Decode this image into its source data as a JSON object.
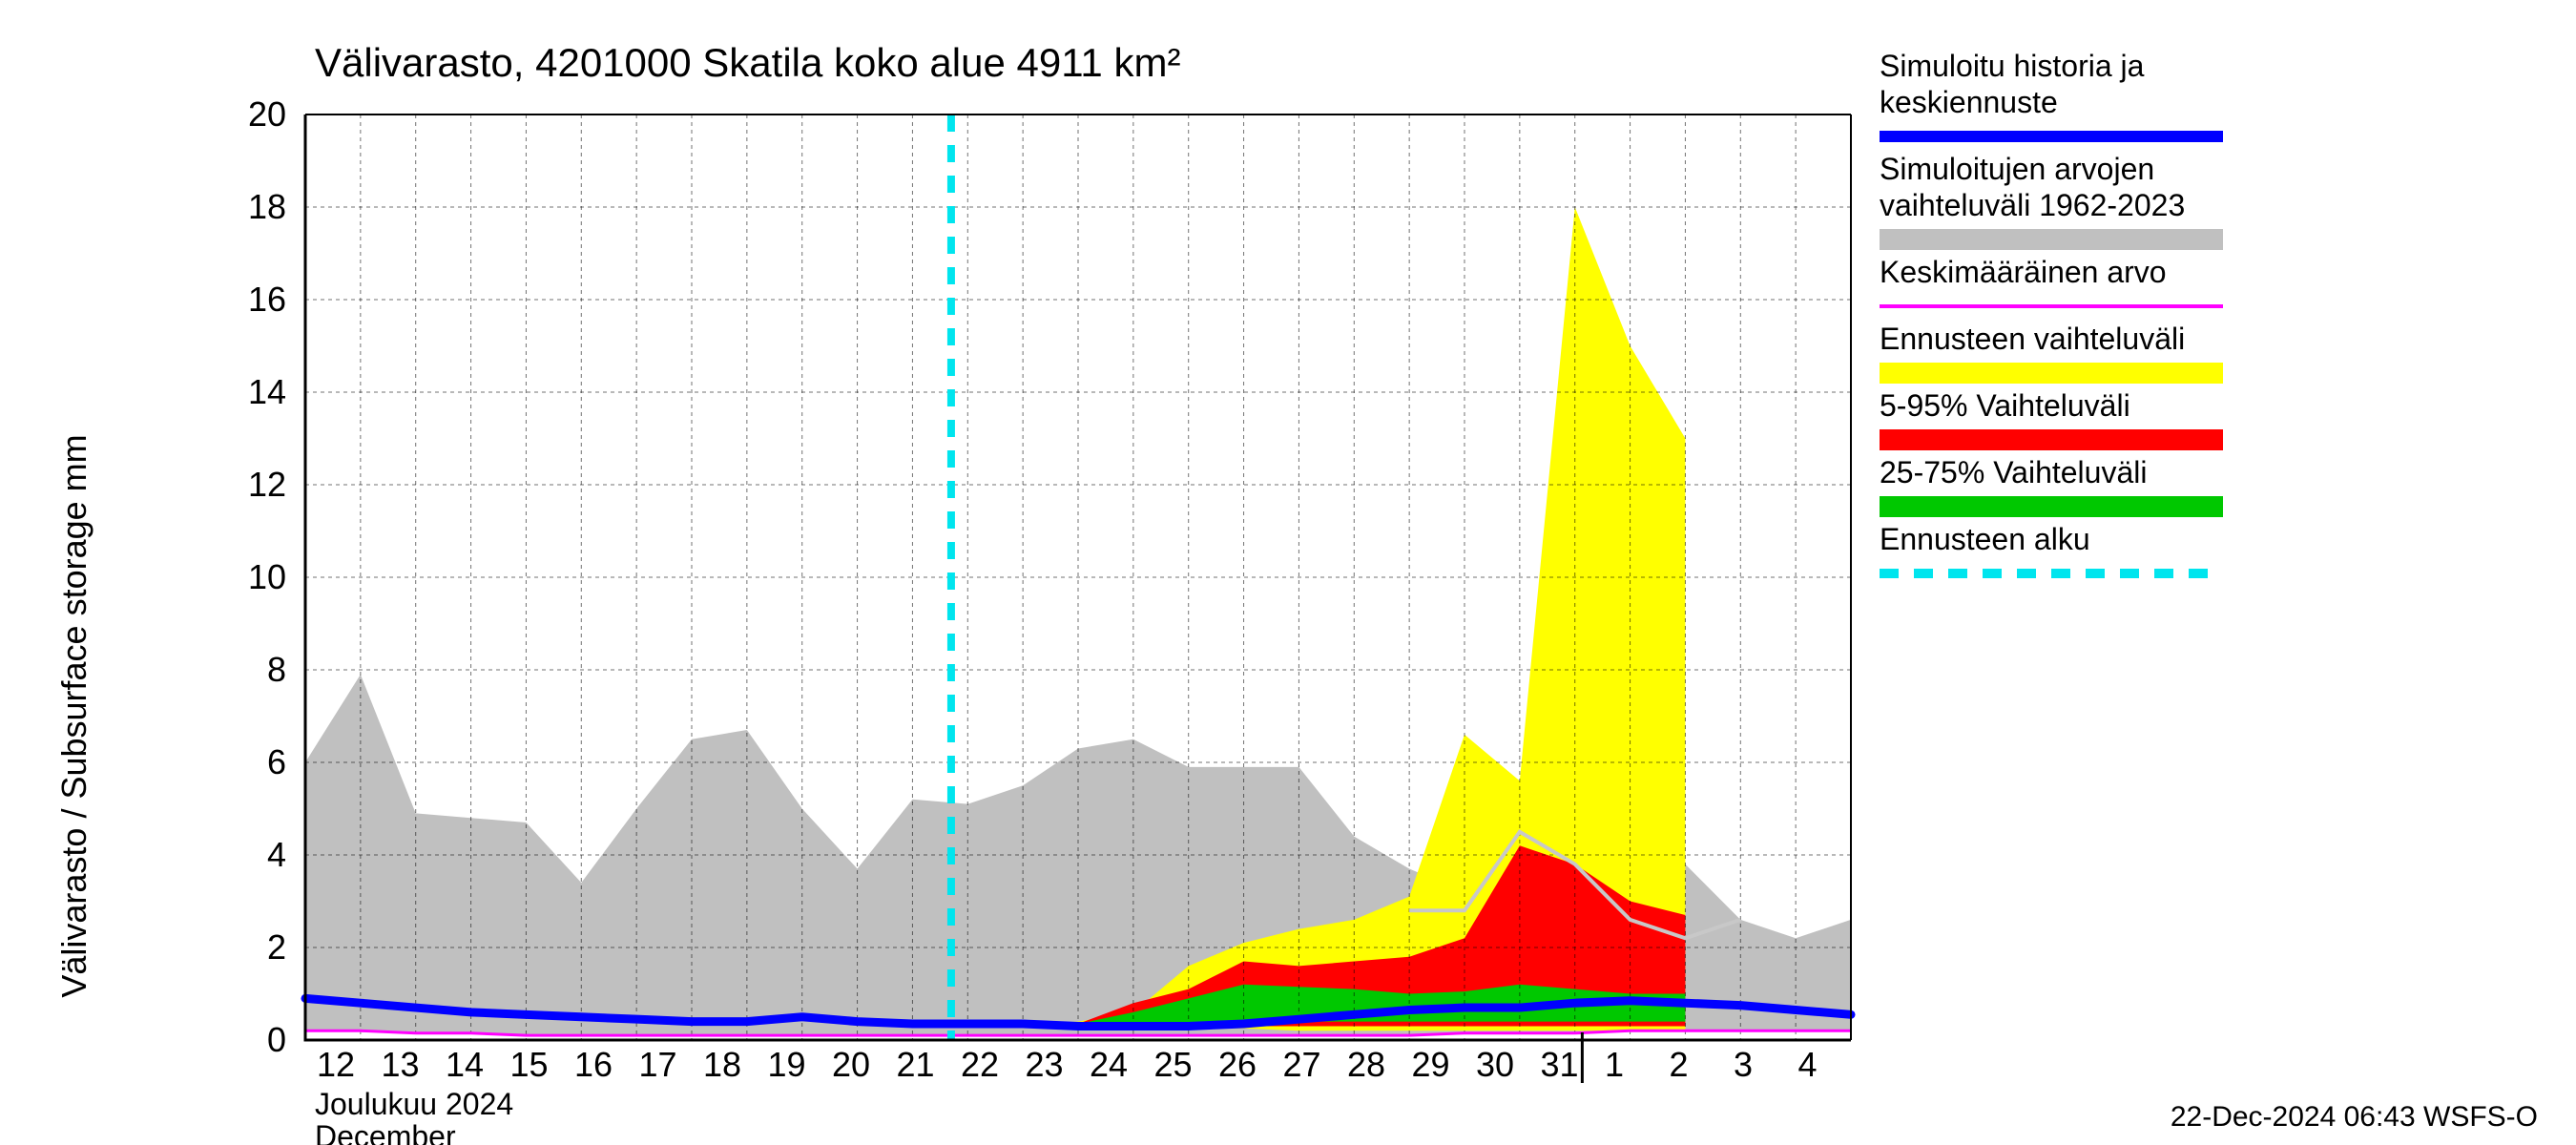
{
  "chart": {
    "type": "area-line",
    "title": "Välivarasto, 4201000 Skatila koko alue 4911 km²",
    "ylabel": "Välivarasto / Subsurface storage  mm",
    "xlabel_month_fi": "Joulukuu  2024",
    "xlabel_month_en": "December",
    "footer": "22-Dec-2024 06:43 WSFS-O",
    "background_color": "#ffffff",
    "grid_color": "#000000",
    "y": {
      "min": 0,
      "max": 20,
      "ticks": [
        0,
        2,
        4,
        6,
        8,
        10,
        12,
        14,
        16,
        18,
        20
      ],
      "label_fontsize": 36
    },
    "x": {
      "days": [
        12,
        13,
        14,
        15,
        16,
        17,
        18,
        19,
        20,
        21,
        22,
        23,
        24,
        25,
        26,
        27,
        28,
        29,
        30,
        31,
        1,
        2,
        3,
        4
      ],
      "month_break_index": 20,
      "label_fontsize": 30
    },
    "forecast_start_index": 10,
    "colors": {
      "blue_main": "#0000ff",
      "grey_band": "#c0c0c0",
      "magenta_mean": "#ff00ff",
      "yellow_band": "#ffff00",
      "red_band": "#ff0000",
      "green_band": "#00c800",
      "cyan_dash": "#00e5ee",
      "lightgrey_line": "#c8c8c8"
    },
    "line_widths": {
      "blue_main": 9,
      "magenta_mean": 3,
      "cyan_dash": 8,
      "lightgrey_line": 4
    },
    "series": {
      "grey_upper": [
        6.0,
        7.9,
        4.9,
        4.8,
        4.7,
        3.4,
        5.0,
        6.5,
        6.7,
        5.0,
        3.7,
        5.2,
        5.1,
        5.5,
        6.3,
        6.5,
        5.9,
        5.9,
        5.9,
        4.4,
        3.7,
        3.2,
        3.0,
        2.8,
        4.5,
        3.8,
        2.6,
        2.2,
        2.6
      ],
      "grey_lower": [
        0.2,
        0.2,
        0.15,
        0.15,
        0.1,
        0.1,
        0.1,
        0.1,
        0.1,
        0.1,
        0.1,
        0.1,
        0.1,
        0.1,
        0.1,
        0.1,
        0.1,
        0.1,
        0.1,
        0.1,
        0.1,
        0.15,
        0.15,
        0.15,
        0.2,
        0.2,
        0.2,
        0.2,
        0.2
      ],
      "yellow_upper": [
        0.35,
        0.35,
        0.35,
        0.3,
        0.3,
        0.3,
        0.3,
        0.3,
        0.3,
        0.3,
        0.3,
        0.3,
        0.3,
        0.35,
        0.4,
        0.6,
        1.6,
        2.1,
        2.4,
        2.6,
        3.1,
        6.6,
        5.6,
        18.0,
        15.0,
        13.0
      ],
      "yellow_lower": [
        0.35,
        0.35,
        0.35,
        0.3,
        0.3,
        0.3,
        0.3,
        0.3,
        0.3,
        0.3,
        0.3,
        0.3,
        0.3,
        0.3,
        0.25,
        0.25,
        0.25,
        0.25,
        0.2,
        0.2,
        0.2,
        0.2,
        0.2,
        0.2,
        0.2,
        0.2
      ],
      "red_upper": [
        0.35,
        0.35,
        0.35,
        0.3,
        0.3,
        0.3,
        0.3,
        0.3,
        0.3,
        0.3,
        0.3,
        0.3,
        0.3,
        0.32,
        0.35,
        0.8,
        1.1,
        1.7,
        1.6,
        1.7,
        1.8,
        2.2,
        4.2,
        3.8,
        3.0,
        2.7
      ],
      "red_lower": [
        0.35,
        0.35,
        0.35,
        0.3,
        0.3,
        0.3,
        0.3,
        0.3,
        0.3,
        0.3,
        0.3,
        0.3,
        0.3,
        0.3,
        0.3,
        0.3,
        0.3,
        0.3,
        0.3,
        0.3,
        0.3,
        0.3,
        0.3,
        0.3,
        0.3,
        0.3
      ],
      "green_upper": [
        0.35,
        0.35,
        0.35,
        0.3,
        0.3,
        0.3,
        0.3,
        0.3,
        0.3,
        0.3,
        0.3,
        0.3,
        0.3,
        0.31,
        0.35,
        0.6,
        0.9,
        1.2,
        1.15,
        1.1,
        1.0,
        1.05,
        1.2,
        1.1,
        1.0,
        1.0
      ],
      "green_lower": [
        0.35,
        0.35,
        0.35,
        0.3,
        0.3,
        0.3,
        0.3,
        0.3,
        0.3,
        0.3,
        0.3,
        0.3,
        0.3,
        0.3,
        0.3,
        0.35,
        0.35,
        0.4,
        0.4,
        0.4,
        0.4,
        0.4,
        0.4,
        0.4,
        0.4,
        0.4
      ],
      "blue": [
        0.9,
        0.8,
        0.7,
        0.6,
        0.55,
        0.5,
        0.45,
        0.4,
        0.4,
        0.5,
        0.4,
        0.35,
        0.35,
        0.35,
        0.3,
        0.3,
        0.3,
        0.35,
        0.45,
        0.55,
        0.65,
        0.7,
        0.7,
        0.8,
        0.85,
        0.8,
        0.75,
        0.65,
        0.55
      ],
      "magenta": [
        0.2,
        0.2,
        0.15,
        0.15,
        0.1,
        0.1,
        0.1,
        0.1,
        0.1,
        0.1,
        0.1,
        0.1,
        0.1,
        0.1,
        0.1,
        0.1,
        0.1,
        0.1,
        0.1,
        0.1,
        0.1,
        0.15,
        0.15,
        0.15,
        0.2,
        0.2,
        0.2,
        0.2,
        0.2
      ],
      "lightgrey_line": [
        0,
        0,
        0,
        0,
        0,
        0,
        0,
        0,
        0,
        0,
        0,
        0,
        0,
        0,
        0,
        0,
        0,
        0,
        0,
        0,
        2.8,
        2.8,
        4.5,
        3.8,
        2.6,
        2.2,
        2.6
      ]
    },
    "legend": [
      {
        "label_line1": "Simuloitu historia ja",
        "label_line2": "keskiennuste",
        "type": "line-thick",
        "color": "#0000ff"
      },
      {
        "label_line1": "Simuloitujen arvojen",
        "label_line2": "vaihteluväli 1962-2023",
        "type": "fill",
        "color": "#c0c0c0"
      },
      {
        "label_line1": "Keskimääräinen arvo",
        "label_line2": "",
        "type": "line",
        "color": "#ff00ff"
      },
      {
        "label_line1": "Ennusteen vaihteluväli",
        "label_line2": "",
        "type": "fill",
        "color": "#ffff00"
      },
      {
        "label_line1": "5-95% Vaihteluväli",
        "label_line2": "",
        "type": "fill",
        "color": "#ff0000"
      },
      {
        "label_line1": "25-75% Vaihteluväli",
        "label_line2": "",
        "type": "fill",
        "color": "#00c800"
      },
      {
        "label_line1": "Ennusteen alku",
        "label_line2": "",
        "type": "line-dash",
        "color": "#00e5ee"
      }
    ]
  }
}
